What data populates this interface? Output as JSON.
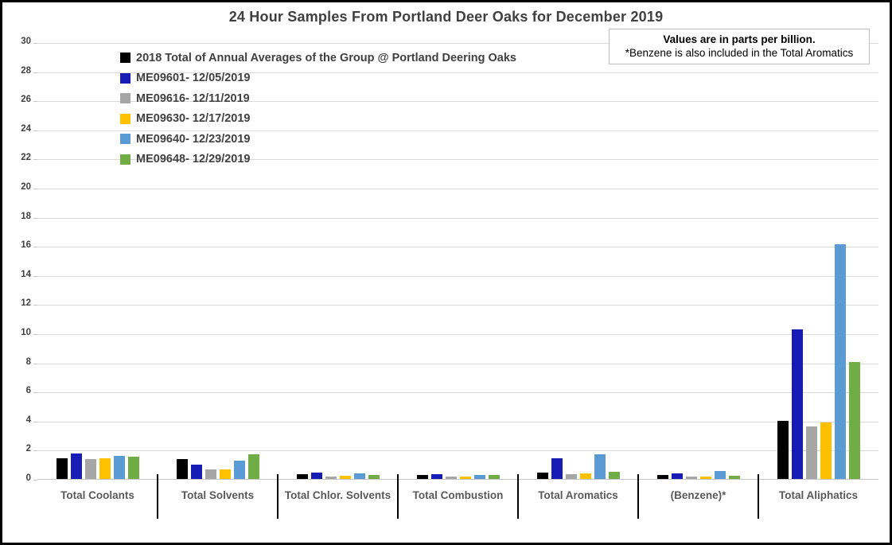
{
  "chart": {
    "title": "24 Hour Samples From Portland Deer Oaks for December 2019",
    "note_line1": "Values are in parts per billion.",
    "note_line2": "*Benzene is also included in the Total Aromatics"
  },
  "chart_data": {
    "type": "bar",
    "title": "24 Hour Samples From Portland Deer Oaks for December 2019",
    "unit": "parts per billion",
    "categories": [
      "Total Coolants",
      "Total Solvents",
      "Total Chlor. Solvents",
      "Total Combustion",
      "Total Aromatics",
      "(Benzene)*",
      "Total Aliphatics"
    ],
    "series": [
      {
        "name": "2018 Total of Annual Averages of the Group @ Portland Deering Oaks",
        "color": "#000000",
        "values": [
          1.45,
          1.35,
          0.35,
          0.3,
          0.45,
          0.25,
          4.0
        ]
      },
      {
        "name": "ME09601- 12/05/2019",
        "color": "#161cb4",
        "values": [
          1.75,
          1.0,
          0.45,
          0.35,
          1.4,
          0.4,
          10.3
        ]
      },
      {
        "name": "ME09616- 12/11/2019",
        "color": "#a6a6a6",
        "values": [
          1.35,
          0.65,
          0.15,
          0.15,
          0.35,
          0.15,
          3.6
        ]
      },
      {
        "name": "ME09630- 12/17/2019",
        "color": "#ffc000",
        "values": [
          1.4,
          0.65,
          0.2,
          0.15,
          0.4,
          0.15,
          3.9
        ]
      },
      {
        "name": "ME09640- 12/23/2019",
        "color": "#5b9bd5",
        "values": [
          1.6,
          1.25,
          0.4,
          0.3,
          1.7,
          0.55,
          16.1
        ]
      },
      {
        "name": "ME09648- 12/29/2019",
        "color": "#70ad47",
        "values": [
          1.55,
          1.7,
          0.25,
          0.3,
          0.5,
          0.2,
          8.05
        ]
      }
    ],
    "ylim": [
      0,
      30
    ],
    "ytick_step": 2,
    "grid": true,
    "legend_position": "top-left inside plot area",
    "annotations": [
      "Values are in parts per billion.",
      "*Benzene is also included in the Total Aromatics"
    ]
  }
}
